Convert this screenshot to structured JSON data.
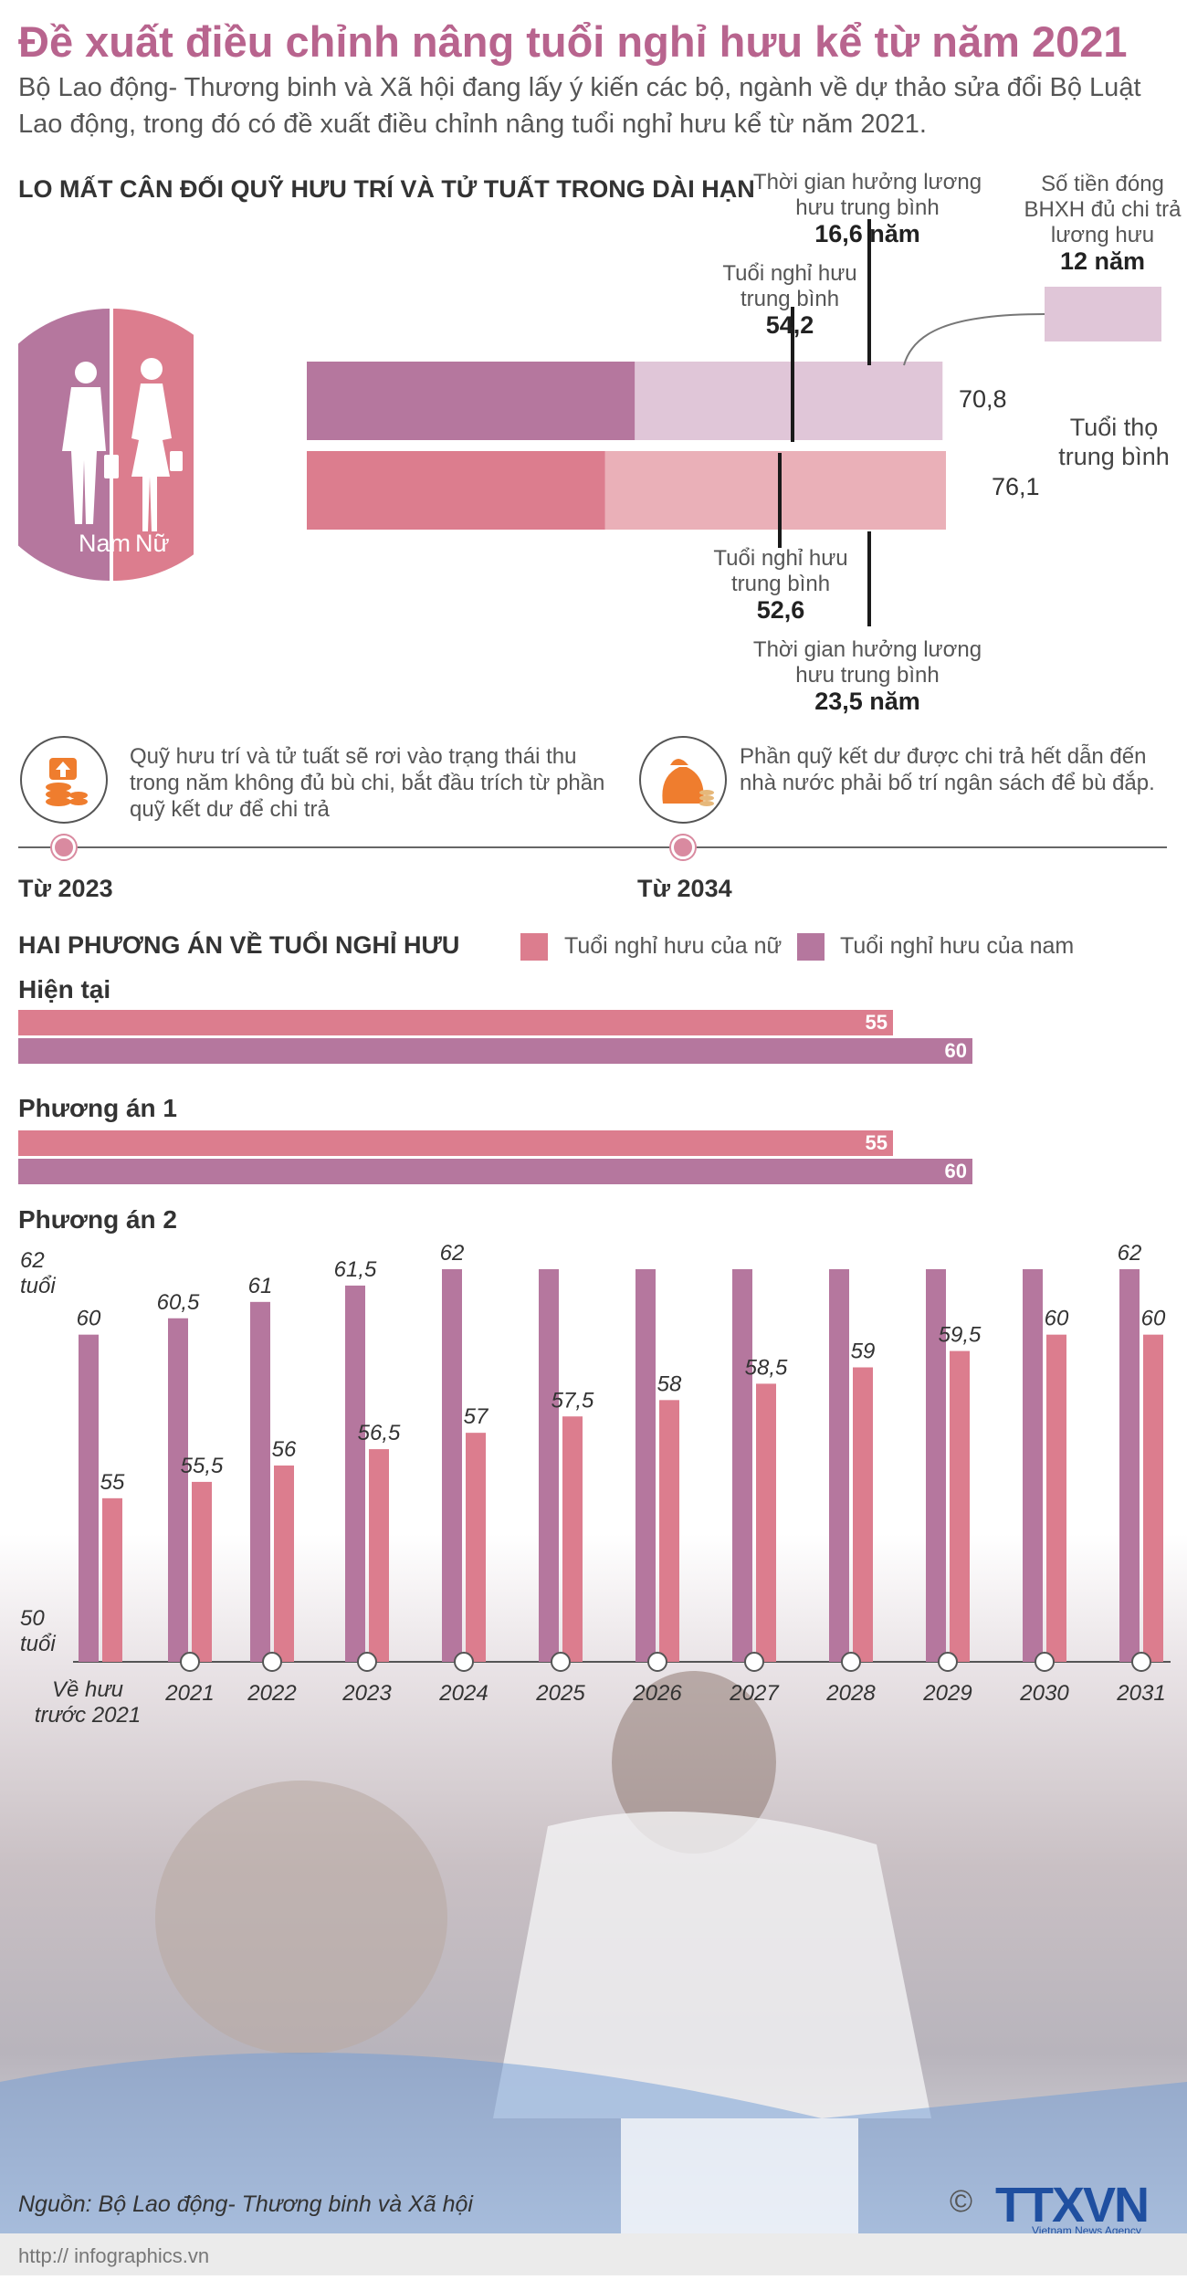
{
  "title": "Đề xuất điều chỉnh nâng tuổi nghỉ hưu kể từ năm 2021",
  "subtitle": "Bộ Lao động- Thương binh và Xã hội đang lấy ý kiến các bộ, ngành về dự thảo sửa đổi Bộ Luật Lao động, trong đó có đề xuất điều chỉnh nâng tuổi nghỉ hưu kể từ năm 2021.",
  "section1": {
    "heading": "LO MẤT CÂN ĐỐI QUỸ HƯU TRÍ VÀ TỬ TUẤT TRONG DÀI HẠN",
    "male_label": "Nam",
    "female_label": "Nữ",
    "male_avg_retire_label": "Tuổi nghỉ hưu trung bình",
    "male_avg_retire_value": "54,2",
    "male_pension_label": "Thời gian hưởng lương hưu trung bình",
    "male_pension_value": "16,6 năm",
    "contribution_label": "Số tiền đóng BHXH đủ chi trả lương hưu",
    "contribution_value": "12 năm",
    "male_life_value": "70,8",
    "female_life_value": "76,1",
    "life_label": "Tuổi thọ trung bình",
    "female_avg_retire_label": "Tuổi nghỉ hưu trung bình",
    "female_avg_retire_value": "52,6",
    "female_pension_label": "Thời gian hưởng lương hưu trung bình",
    "female_pension_value": "23,5 năm",
    "colors": {
      "male": "#b5779e",
      "male_light": "#e0c6d8",
      "female": "#dc7d8e",
      "female_light": "#eab0b8"
    }
  },
  "timeline": {
    "note1": "Quỹ hưu trí và tử tuất sẽ rơi vào trạng thái thu trong năm không đủ bù chi, bắt đầu trích từ phần quỹ kết dư để chi trả",
    "year1": "Từ 2023",
    "note2": "Phần quỹ kết dư được chi trả hết dẫn đến nhà nước phải bố trí ngân sách để bù đắp.",
    "year2": "Từ 2034",
    "icon1": "coins-arrow-up-icon",
    "icon2": "money-bag-icon"
  },
  "section2": {
    "heading": "HAI PHƯƠNG ÁN VỀ TUỔI NGHỈ HƯU",
    "legend_female": "Tuổi nghỉ hưu của nữ",
    "legend_male": "Tuổi nghỉ hưu của nam",
    "current_label": "Hiện tại",
    "plan1_label": "Phương án 1",
    "plan2_label": "Phương án 2",
    "current": {
      "female": "55",
      "male": "60"
    },
    "plan1": {
      "female": "55",
      "male": "60"
    },
    "y_top_label": "62",
    "y_top_unit": "tuổi",
    "y_bottom_label": "50",
    "y_bottom_unit": "tuổi",
    "first_cat_line1": "Về hưu",
    "first_cat_line2": "trước 2021"
  },
  "chart_data": [
    {
      "type": "bar",
      "title": "",
      "series": [
        {
          "name": "Nam",
          "values": [
            54.2,
            70.8
          ]
        },
        {
          "name": "Nữ",
          "values": [
            52.6,
            76.1
          ]
        }
      ],
      "categories": [
        "Tuổi nghỉ hưu trung bình",
        "Tuổi thọ trung bình"
      ]
    },
    {
      "type": "bar",
      "categories": [
        "Hiện tại",
        "Phương án 1"
      ],
      "series": [
        {
          "name": "Tuổi nghỉ hưu của nữ",
          "values": [
            55,
            55
          ]
        },
        {
          "name": "Tuổi nghỉ hưu của nam",
          "values": [
            60,
            60
          ]
        }
      ]
    },
    {
      "type": "bar",
      "title": "Phương án 2",
      "categories": [
        "Về hưu trước 2021",
        "2021",
        "2022",
        "2023",
        "2024",
        "2025",
        "2026",
        "2027",
        "2028",
        "2029",
        "2030",
        "2031"
      ],
      "series": [
        {
          "name": "Tuổi nghỉ hưu của nam",
          "values": [
            60,
            60.5,
            61,
            61.5,
            62,
            62,
            62,
            62,
            62,
            62,
            62,
            62
          ],
          "labels": [
            "60",
            "60,5",
            "61",
            "61,5",
            "62",
            "",
            "",
            "",
            "",
            "",
            "",
            "62"
          ]
        },
        {
          "name": "Tuổi nghỉ hưu của nữ",
          "values": [
            55,
            55.5,
            56,
            56.5,
            57,
            57.5,
            58,
            58.5,
            59,
            59.5,
            60,
            60
          ],
          "labels": [
            "55",
            "55,5",
            "56",
            "56,5",
            "57",
            "57,5",
            "58",
            "58,5",
            "59",
            "59,5",
            "60",
            "60"
          ]
        }
      ],
      "ylim": [
        50,
        62
      ],
      "ylabel": "tuổi",
      "colors": {
        "male": "#b5779e",
        "female": "#dc7d8e"
      }
    }
  ],
  "source": "Nguồn: Bộ Lao động- Thương binh và Xã hội",
  "footer": "http:// infographics.vn",
  "logo": "TTXVN",
  "logo_sub": "Vietnam News Agency",
  "copyright_symbol": "©"
}
